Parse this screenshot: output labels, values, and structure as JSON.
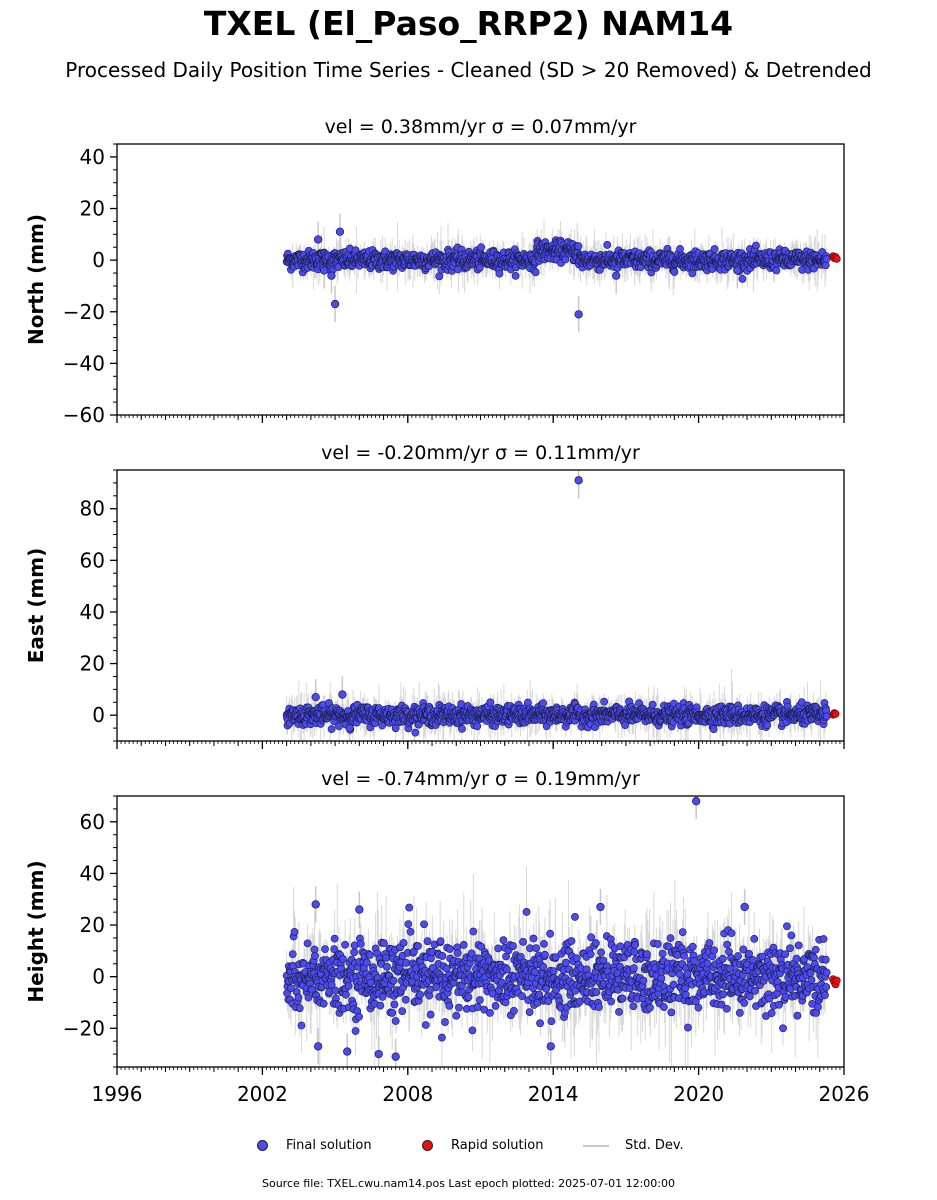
{
  "title": "TXEL (El_Paso_RRP2) NAM14",
  "subtitle": "Processed Daily Position Time Series - Cleaned (SD > 20 Removed) & Detrended",
  "legend": {
    "final": "Final solution",
    "rapid": "Rapid solution",
    "std": "Std. Dev."
  },
  "footer": "Source file: TXEL.cwu.nam14.pos  Last epoch plotted: 2025-07-01 12:00:00",
  "colors": {
    "final": "#4b4bf0",
    "rapid": "#e81010",
    "std": "#c8c8c8"
  },
  "chart_data": [
    {
      "type": "scatter",
      "title": "vel = 0.38mm/yr   σ = 0.07mm/yr",
      "ylabel": "North (mm)",
      "xlim": [
        1996,
        2026
      ],
      "ylim": [
        -60,
        45
      ],
      "yticks": [
        -60,
        -40,
        -20,
        0,
        20,
        40
      ],
      "xticks": [
        1996,
        2002,
        2008,
        2014,
        2020,
        2026
      ],
      "show_xtick_labels": false,
      "data_start": 2003.0,
      "data_end": 2025.3,
      "scatter_sd": 1.8,
      "bar_sd": 4,
      "outliers": [
        [
          2004.3,
          8
        ],
        [
          2004.85,
          -6
        ],
        [
          2005.0,
          -17
        ],
        [
          2005.2,
          11
        ],
        [
          2004.55,
          -4
        ],
        [
          2015.05,
          -21
        ],
        [
          2016.6,
          -6
        ],
        [
          2021.6,
          -4
        ]
      ],
      "rapid": [
        [
          2025.55,
          1.5
        ],
        [
          2025.6,
          0.8
        ],
        [
          2025.65,
          1.2
        ],
        [
          2025.7,
          0.5
        ]
      ]
    },
    {
      "type": "scatter",
      "title": "vel = -0.20mm/yr   σ = 0.11mm/yr",
      "ylabel": "East (mm)",
      "xlim": [
        1996,
        2026
      ],
      "ylim": [
        -10,
        95
      ],
      "yticks": [
        0,
        20,
        40,
        60,
        80
      ],
      "xticks": [
        1996,
        2002,
        2008,
        2014,
        2020,
        2026
      ],
      "show_xtick_labels": false,
      "data_start": 2003.0,
      "data_end": 2025.3,
      "scatter_sd": 1.8,
      "bar_sd": 4,
      "outliers": [
        [
          2015.05,
          91
        ],
        [
          2005.3,
          8
        ],
        [
          2004.2,
          7
        ],
        [
          2005.6,
          -5
        ]
      ],
      "rapid": [
        [
          2025.55,
          0.2
        ],
        [
          2025.6,
          0.8
        ],
        [
          2025.65,
          0.5
        ]
      ]
    },
    {
      "type": "scatter",
      "title": "vel = -0.74mm/yr   σ = 0.19mm/yr",
      "ylabel": "Height (mm)",
      "xlim": [
        1996,
        2026
      ],
      "ylim": [
        -35,
        70
      ],
      "yticks": [
        -20,
        0,
        20,
        40,
        60
      ],
      "xticks": [
        1996,
        2002,
        2008,
        2014,
        2020,
        2026
      ],
      "show_xtick_labels": true,
      "data_start": 2003.0,
      "data_end": 2025.3,
      "scatter_sd": 7,
      "bar_sd": 9,
      "outliers": [
        [
          2019.9,
          68
        ],
        [
          2004.2,
          28
        ],
        [
          2006.0,
          26
        ],
        [
          2015.95,
          27
        ],
        [
          2021.9,
          27
        ],
        [
          2013.9,
          -27
        ],
        [
          2006.8,
          -30
        ],
        [
          2007.5,
          -31
        ],
        [
          2005.5,
          -29
        ],
        [
          2004.3,
          -27
        ]
      ],
      "rapid": [
        [
          2025.55,
          -1
        ],
        [
          2025.6,
          -2
        ],
        [
          2025.65,
          -3
        ],
        [
          2025.7,
          -1.5
        ]
      ]
    }
  ]
}
